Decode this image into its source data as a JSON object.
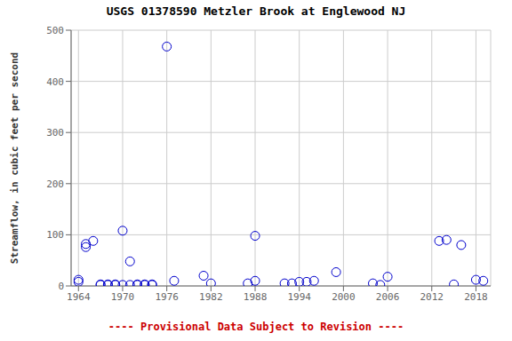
{
  "chart_data": {
    "type": "scatter",
    "title": "USGS 01378590 Metzler Brook at Englewood NJ",
    "ylabel": "Streamflow, in cubic feet per second",
    "x": [
      1964,
      1964,
      1965,
      1965,
      1966,
      1967,
      1967,
      1968,
      1968,
      1969,
      1969,
      1970,
      1970,
      1971,
      1971,
      1972,
      1972,
      1973,
      1973,
      1974,
      1974,
      1976,
      1977,
      1981,
      1982,
      1987,
      1988,
      1988,
      1992,
      1993,
      1994,
      1995,
      1996,
      1999,
      2004,
      2005,
      2006,
      2013,
      2014,
      2015,
      2016,
      2018,
      2019
    ],
    "values": [
      8,
      12,
      76,
      82,
      88,
      2,
      3,
      2,
      3,
      2,
      3,
      108,
      2,
      48,
      2,
      3,
      2,
      2,
      3,
      2,
      3,
      468,
      10,
      20,
      5,
      5,
      98,
      10,
      5,
      5,
      8,
      8,
      10,
      27,
      5,
      2,
      18,
      88,
      90,
      3,
      80,
      12,
      10
    ],
    "color": "#0000cc",
    "marker": "open_circle",
    "xlim": [
      1963,
      2020
    ],
    "ylim": [
      0,
      500
    ],
    "xticks": [
      1964,
      1970,
      1976,
      1982,
      1988,
      1994,
      2000,
      2006,
      2012,
      2018
    ],
    "yticks": [
      0,
      100,
      200,
      300,
      400,
      500
    ],
    "grid": true,
    "annotations": [
      {
        "text": "---- Provisional Data Subject to Revision ----",
        "color": "#cc0000"
      }
    ]
  }
}
